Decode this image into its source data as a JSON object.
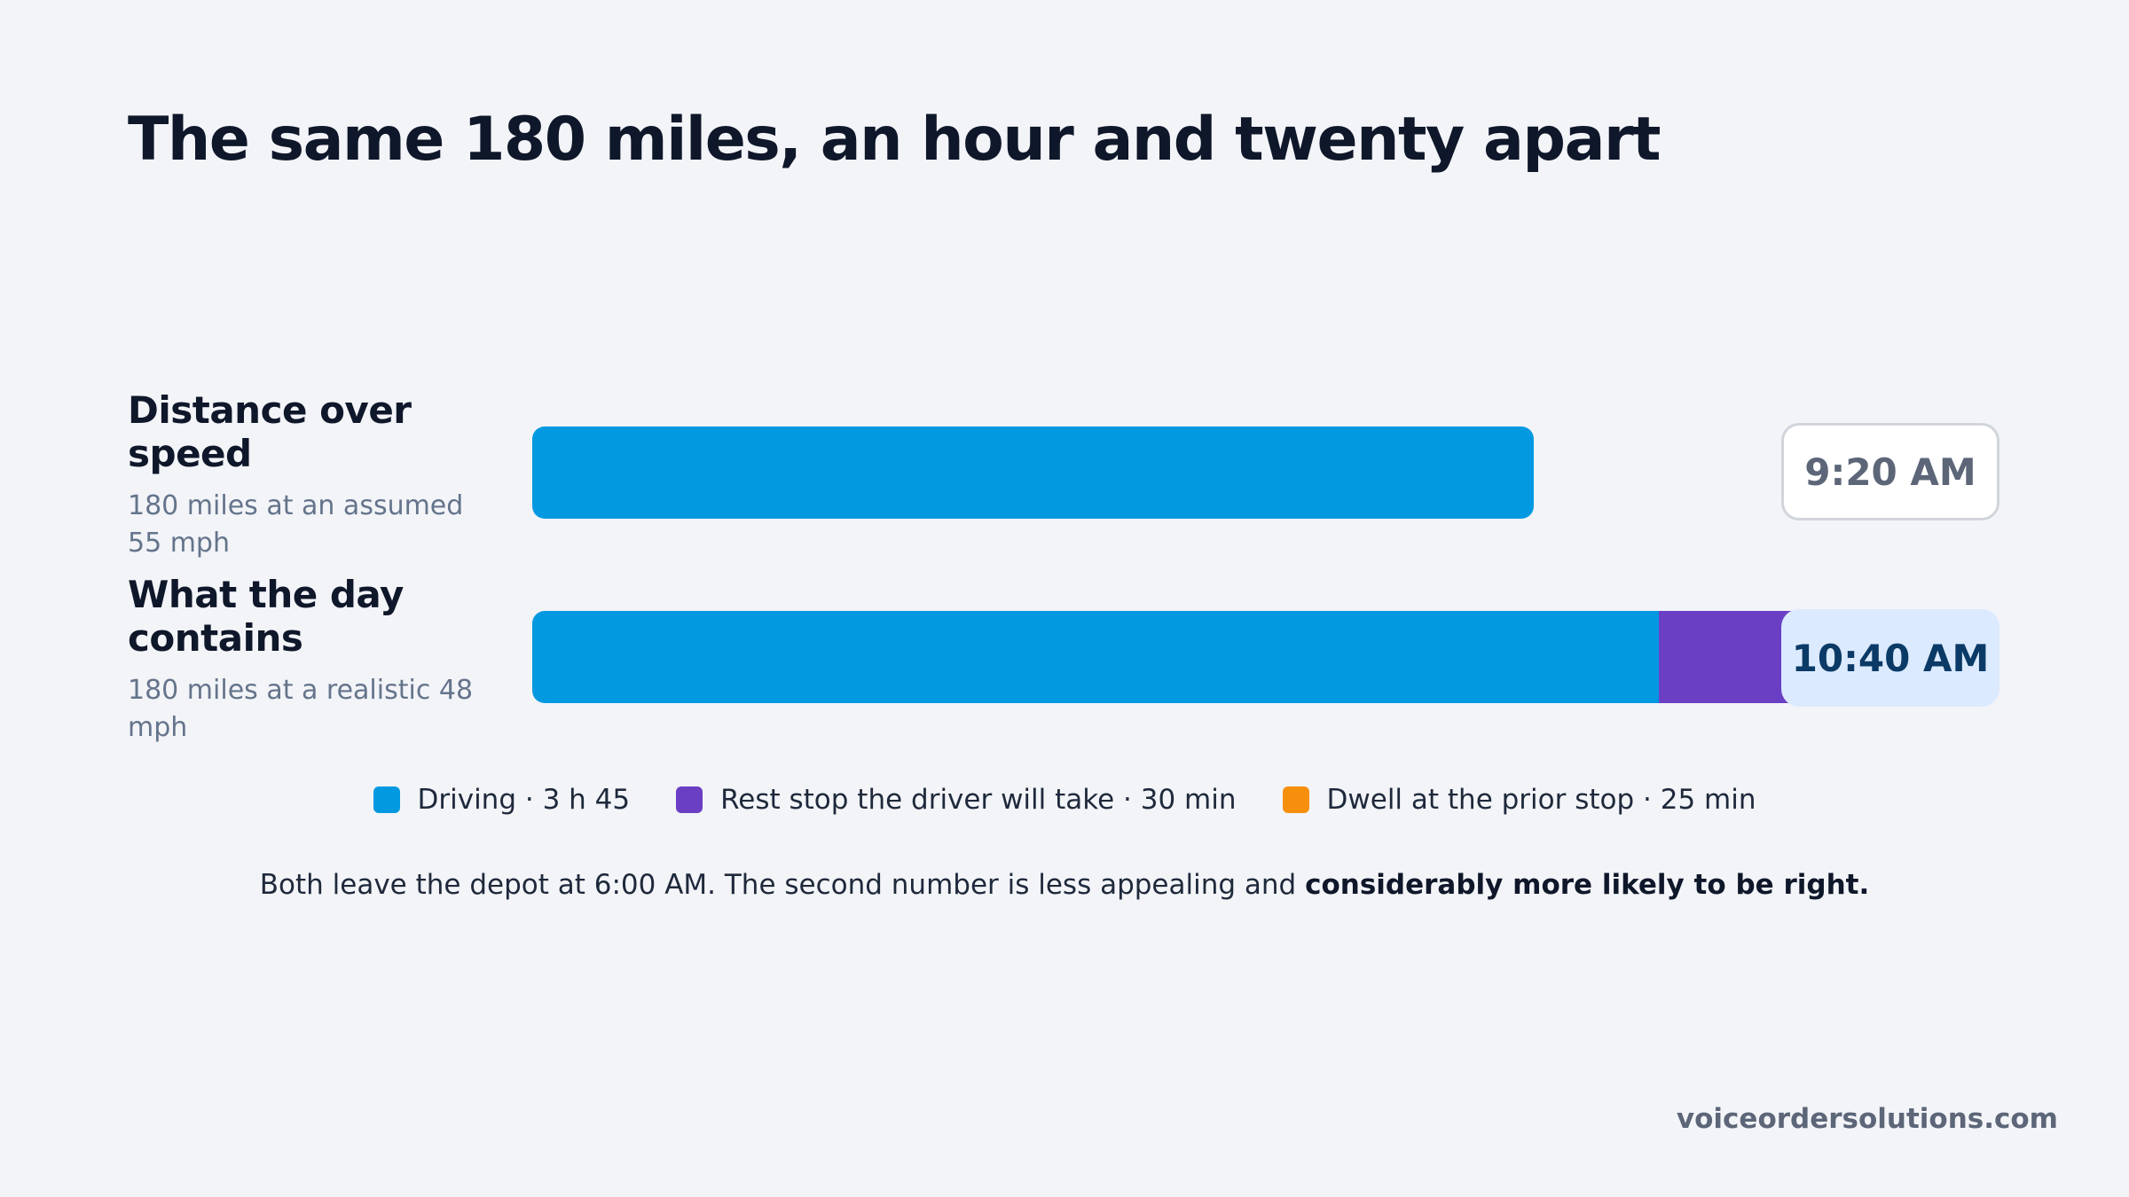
{
  "title": "The same 180 miles, an hour and twenty apart",
  "colors": {
    "driving": "#0399e1",
    "rest": "#6b3fc4",
    "dwell": "#f58f0c"
  },
  "rows": [
    {
      "title": "Distance over speed",
      "subtitle": "180 miles at an assumed 55 mph",
      "arrival": "9:20 AM"
    },
    {
      "title": "What the day contains",
      "subtitle": "180 miles at a realistic 48 mph",
      "arrival": "10:40 AM"
    }
  ],
  "chart_data": {
    "type": "bar",
    "orientation": "horizontal",
    "stacked": true,
    "categories": [
      "Distance over speed",
      "What the day contains"
    ],
    "series": [
      {
        "name": "Driving · 3 h 45",
        "values": [
          200,
          225
        ],
        "color": "#0399e1"
      },
      {
        "name": "Rest stop the driver will take · 30 min",
        "values": [
          0,
          30
        ],
        "color": "#6b3fc4"
      },
      {
        "name": "Dwell at the prior stop · 25 min",
        "values": [
          0,
          25
        ],
        "color": "#f58f0c"
      }
    ],
    "end_labels": [
      "9:20 AM",
      "10:40 AM"
    ],
    "xlim": [
      0,
      280
    ],
    "grid": false,
    "legend_position": "bottom"
  },
  "legend": [
    {
      "label": "Driving · 3 h 45",
      "color": "#0399e1"
    },
    {
      "label": "Rest stop the driver will take · 30 min",
      "color": "#6b3fc4"
    },
    {
      "label": "Dwell at the prior stop · 25 min",
      "color": "#f58f0c"
    }
  ],
  "footnote": {
    "text": "Both leave the depot at 6:00 AM. The second number is less appealing and ",
    "emphasis": "considerably more likely to be right."
  },
  "brand": "voiceordersolutions.com"
}
